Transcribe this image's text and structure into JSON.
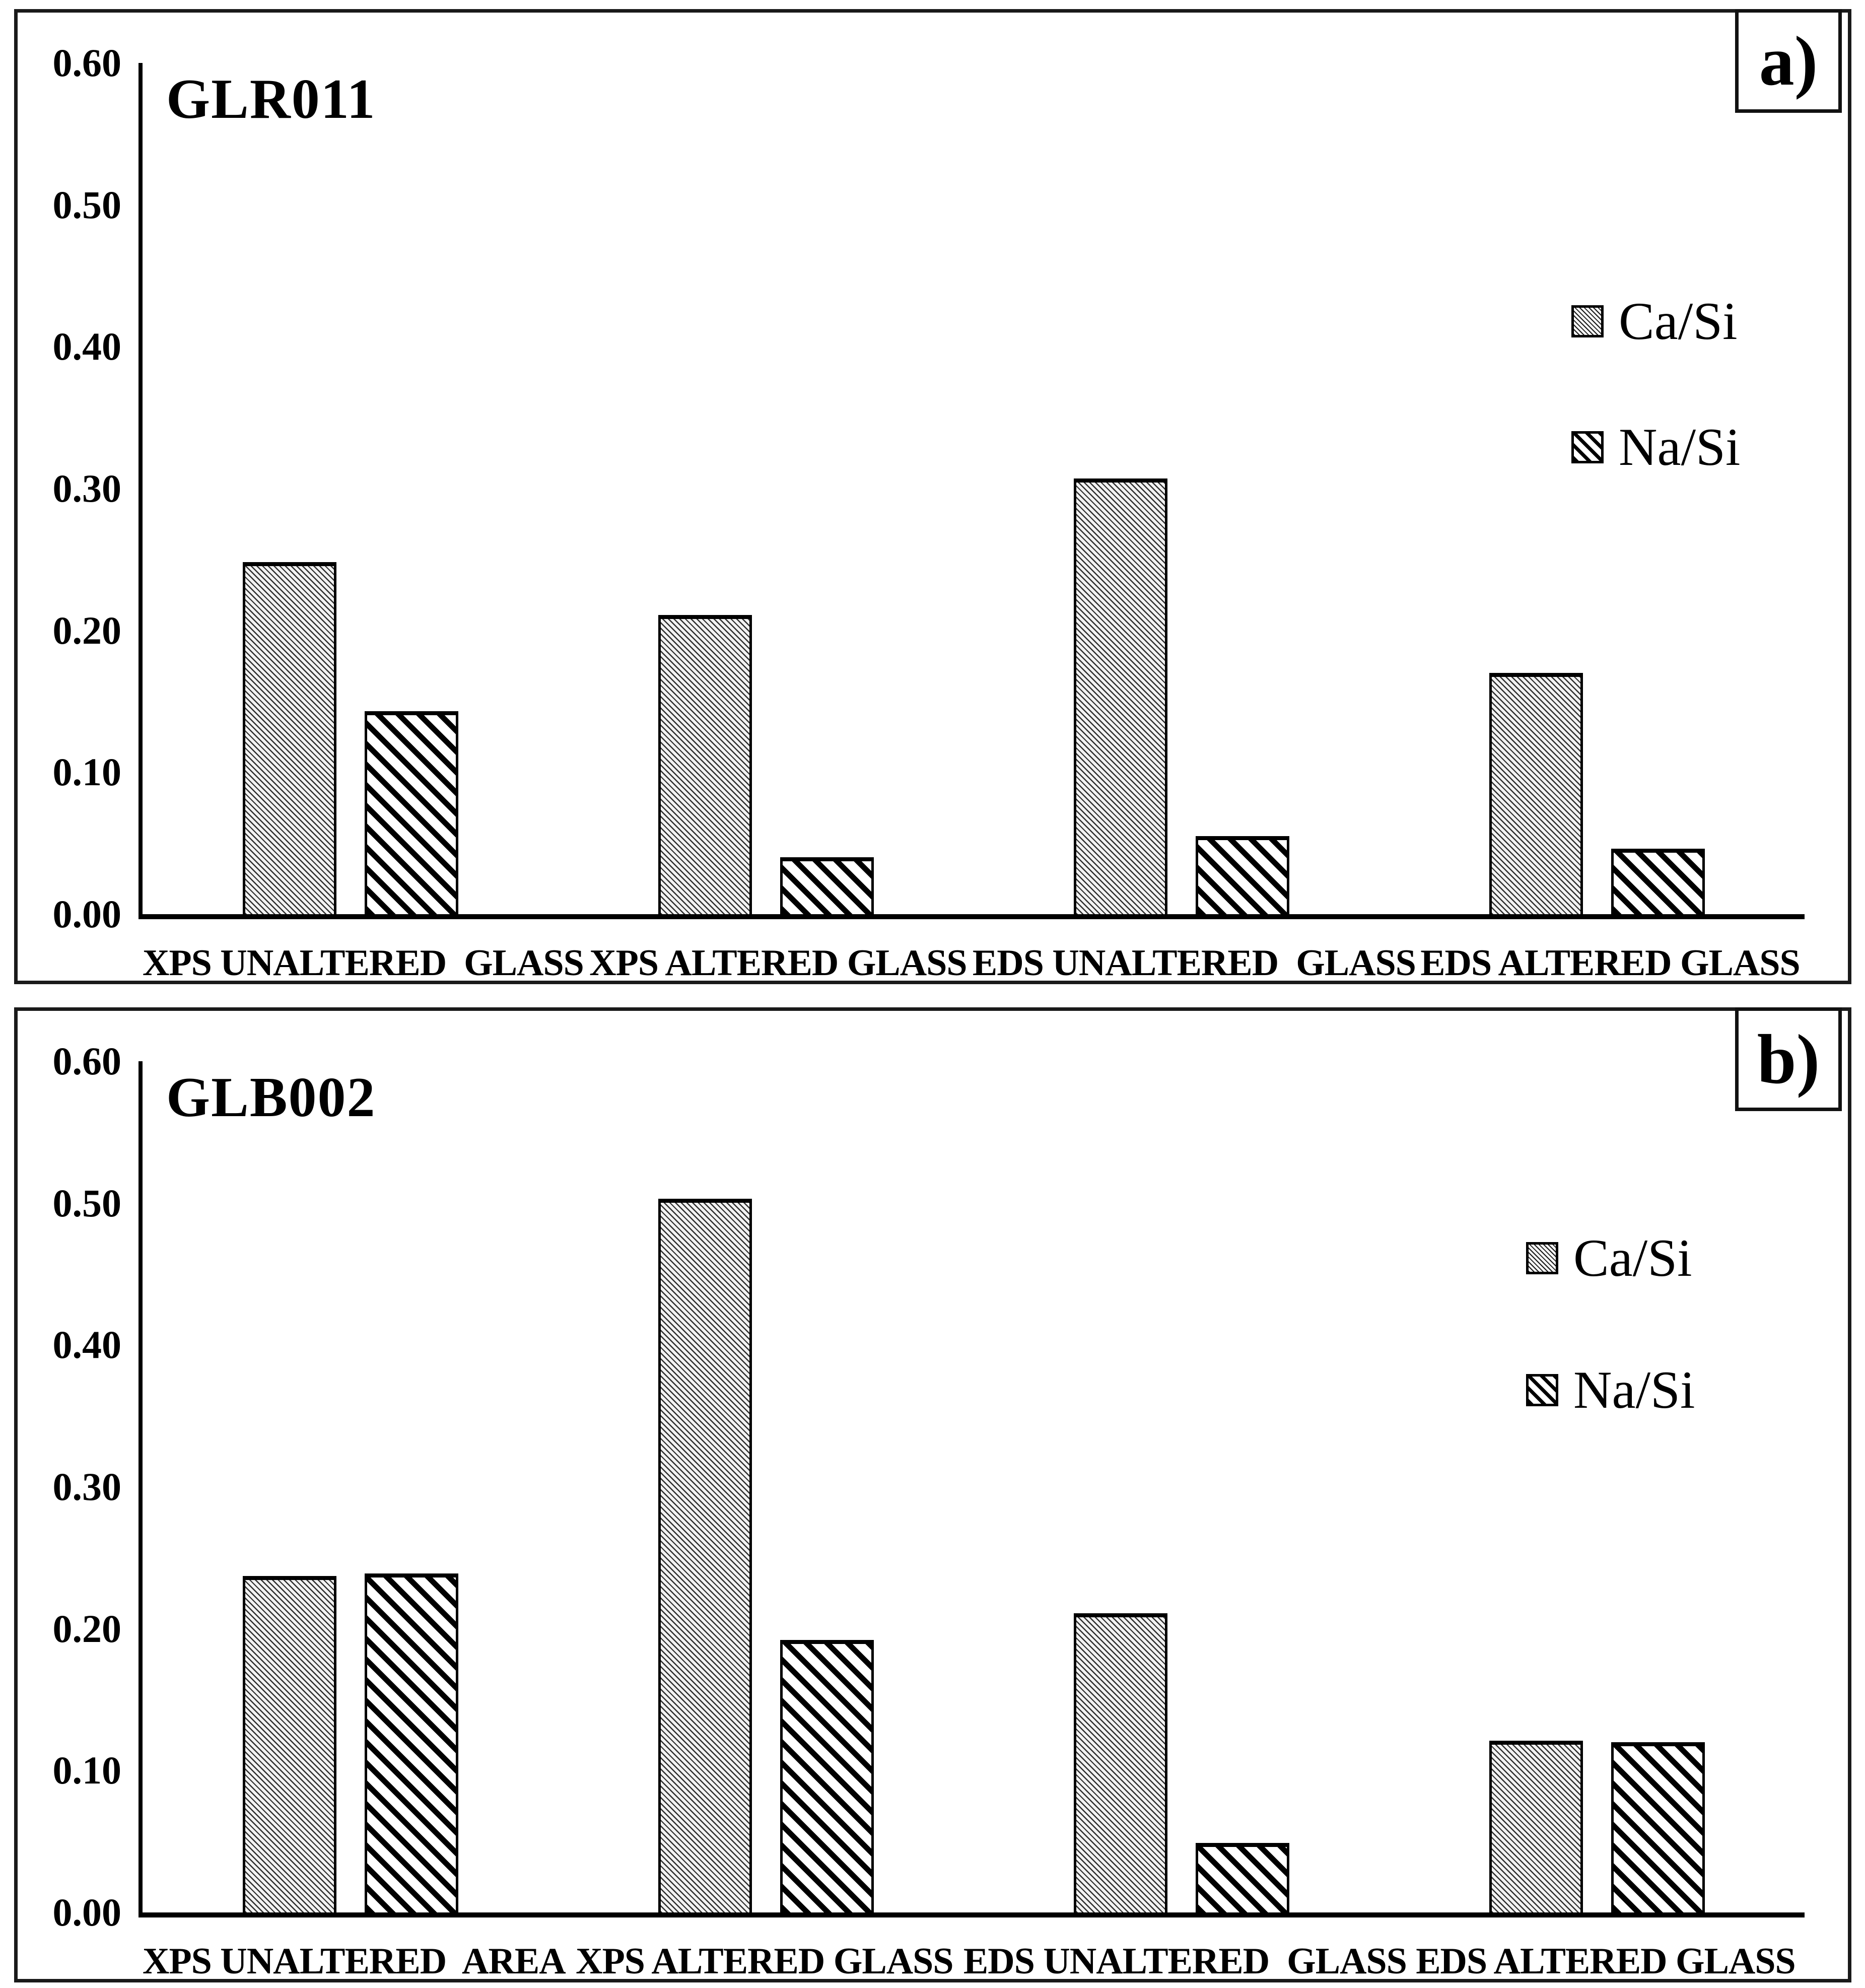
{
  "figure": {
    "panel_count": 2,
    "background": "#ffffff",
    "border_color": "#1a1a1a"
  },
  "chart_data": [
    {
      "type": "bar",
      "panel_label": "a)",
      "title": "GLR011",
      "categories": [
        "XPS UNALTERED  GLASS",
        "XPS ALTERED GLASS",
        "EDS UNALTERED  GLASS",
        "EDS ALTERED GLASS"
      ],
      "series": [
        {
          "name": "Ca/Si",
          "pattern": "fine-diagonal-hatch",
          "values": [
            0.248,
            0.211,
            0.307,
            0.17
          ]
        },
        {
          "name": "Na/Si",
          "pattern": "bold-diagonal-stripes",
          "values": [
            0.143,
            0.04,
            0.055,
            0.046
          ]
        }
      ],
      "ylim": [
        0,
        0.6
      ],
      "y_tick_labels": [
        "0.60",
        "0.50",
        "0.40",
        "0.30",
        "0.20",
        "0.10",
        "0.00"
      ],
      "grid": false,
      "legend_position": "inside-right",
      "bar_color": "#000000"
    },
    {
      "type": "bar",
      "panel_label": "b)",
      "title": "GLB002",
      "categories": [
        "XPS UNALTERED  AREA",
        "XPS ALTERED GLASS",
        "EDS UNALTERED  GLASS",
        "EDS ALTERED GLASS"
      ],
      "series": [
        {
          "name": "Ca/Si",
          "pattern": "fine-diagonal-hatch",
          "values": [
            0.237,
            0.503,
            0.211,
            0.121
          ]
        },
        {
          "name": "Na/Si",
          "pattern": "bold-diagonal-stripes",
          "values": [
            0.239,
            0.192,
            0.049,
            0.12
          ]
        }
      ],
      "ylim": [
        0,
        0.6
      ],
      "y_tick_labels": [
        "0.60",
        "0.50",
        "0.40",
        "0.30",
        "0.20",
        "0.10",
        "0.00"
      ],
      "grid": false,
      "legend_position": "inside-right",
      "bar_color": "#000000"
    }
  ]
}
